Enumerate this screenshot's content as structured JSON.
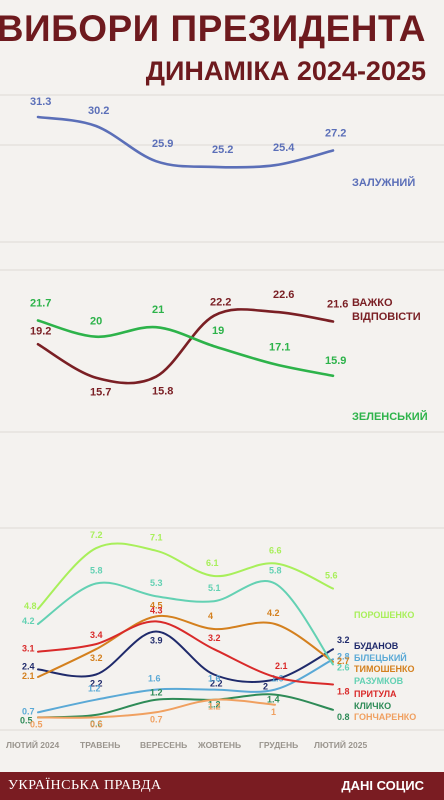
{
  "header": {
    "title": "ВИБОРИ ПРЕЗИДЕНТА",
    "subtitle": "ДИНАМІКА 2024-2025"
  },
  "footer": {
    "brand": "УКРАЇНСЬКА ПРАВДА",
    "source": "ДАНІ СОЦИС"
  },
  "chart_data": {
    "type": "line",
    "categories": [
      "ЛЮТИЙ 2024",
      "ТРАВЕНЬ",
      "ВЕРЕСЕНЬ",
      "ЖОВТЕНЬ",
      "ГРУДЕНЬ",
      "ЛЮТИЙ 2025"
    ],
    "grid": true,
    "panels": [
      {
        "id": "top",
        "ylim": [
          16,
          34
        ],
        "series": [
          {
            "name": "ЗАЛУЖНИЙ",
            "color": "#5b6fb8",
            "values": [
              31.3,
              30.2,
              25.9,
              25.2,
              25.4,
              27.2
            ]
          }
        ]
      },
      {
        "id": "middle",
        "ylim": [
          10,
          27
        ],
        "series": [
          {
            "name": "ВАЖКО ВІДПОВІСТИ",
            "color": "#7a1f24",
            "values": [
              19.2,
              15.7,
              15.8,
              22.2,
              22.6,
              21.6
            ]
          },
          {
            "name": "ЗЕЛЕНСЬКИЙ",
            "color": "#2db34a",
            "values": [
              21.7,
              20,
              21,
              19,
              17.1,
              15.9
            ]
          }
        ]
      },
      {
        "id": "bottom",
        "ylim": [
          0,
          8
        ],
        "series": [
          {
            "name": "ПОРОШЕНКО",
            "color": "#a8ef5a",
            "values": [
              4.8,
              7.2,
              7.1,
              6.1,
              6.6,
              5.6
            ]
          },
          {
            "name": "БУДАНОВ",
            "color": "#1f2a6b",
            "values": [
              2.4,
              2.2,
              3.9,
              2.2,
              2,
              3.2
            ]
          },
          {
            "name": "БІЛЕЦЬКИЙ",
            "color": "#5aa9d6",
            "values": [
              0.7,
              1.2,
              1.6,
              1.6,
              1.6,
              2.8
            ]
          },
          {
            "name": "ТИМОШЕНКО",
            "color": "#d4801e",
            "values": [
              2.1,
              3.2,
              4.5,
              4,
              4.2,
              2.7
            ]
          },
          {
            "name": "РАЗУМКОВ",
            "color": "#63d1b3",
            "values": [
              4.2,
              5.8,
              5.3,
              5.1,
              5.8,
              2.6
            ]
          },
          {
            "name": "ПРИТУЛА",
            "color": "#d92a2a",
            "values": [
              3.1,
              3.4,
              4.3,
              3.2,
              2.1,
              1.8
            ]
          },
          {
            "name": "КЛИЧКО",
            "color": "#2e8b57",
            "values": [
              0.5,
              0.6,
              1.2,
              1.2,
              1.4,
              0.8
            ]
          },
          {
            "name": "ГОНЧАРЕНКО",
            "color": "#f0a060",
            "values": [
              0.5,
              0.5,
              0.7,
              1.2,
              1,
              null
            ]
          }
        ]
      }
    ]
  }
}
